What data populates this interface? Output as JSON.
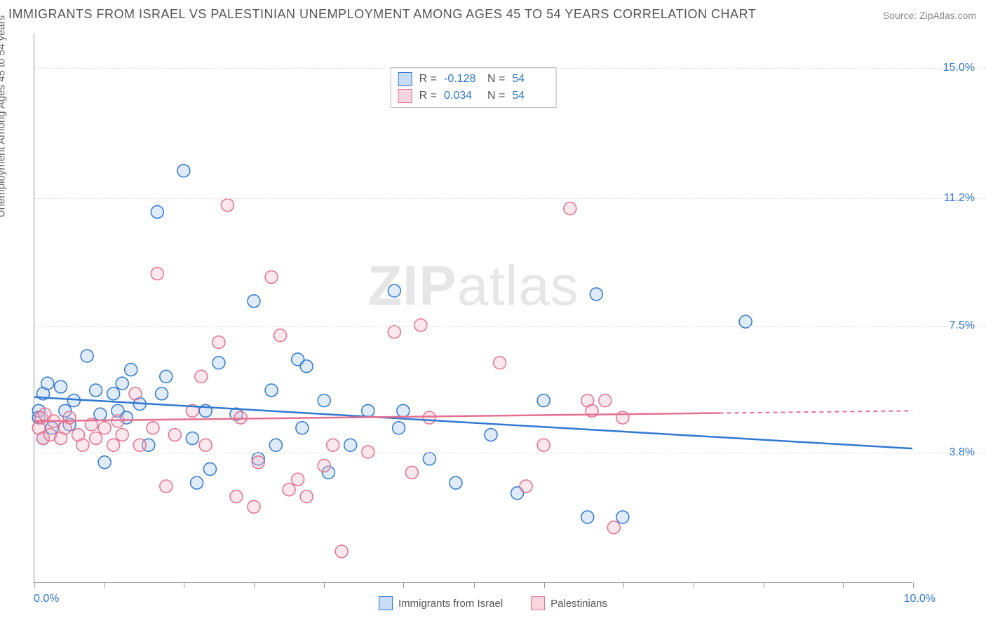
{
  "title": "IMMIGRANTS FROM ISRAEL VS PALESTINIAN UNEMPLOYMENT AMONG AGES 45 TO 54 YEARS CORRELATION CHART",
  "source_label": "Source: ",
  "source_link": "ZipAtlas.com",
  "y_axis_label": "Unemployment Among Ages 45 to 54 years",
  "watermark_bold": "ZIP",
  "watermark_rest": "atlas",
  "chart": {
    "type": "scatter",
    "x_min": 0.0,
    "x_max": 10.0,
    "y_min": 0.0,
    "y_max": 16.0,
    "x_ticks_pct": [
      0,
      8,
      17,
      25,
      33,
      42,
      50,
      58,
      67,
      75,
      83,
      92,
      100
    ],
    "y_gridlines": [
      {
        "value": 3.8,
        "label": "3.8%"
      },
      {
        "value": 7.5,
        "label": "7.5%"
      },
      {
        "value": 11.2,
        "label": "11.2%"
      },
      {
        "value": 15.0,
        "label": "15.0%"
      }
    ],
    "x_left_label": "0.0%",
    "x_right_label": "10.0%",
    "marker_radius": 9,
    "marker_stroke_width": 1.5,
    "marker_fill_opacity": 0.35,
    "background_color": "#ffffff",
    "grid_color": "#dddddd",
    "series": [
      {
        "name": "Immigrants from Israel",
        "color_stroke": "#2f78d1",
        "color_fill": "#a3c6ef",
        "r_value": "-0.128",
        "n_value": "54",
        "regression": {
          "x1": 0.0,
          "y1": 5.4,
          "x2": 10.0,
          "y2": 3.9,
          "dash_after_pct": 100
        },
        "points": [
          [
            0.05,
            5.0
          ],
          [
            0.05,
            4.8
          ],
          [
            0.1,
            5.5
          ],
          [
            0.1,
            4.2
          ],
          [
            0.15,
            5.8
          ],
          [
            0.2,
            4.5
          ],
          [
            0.3,
            5.7
          ],
          [
            0.35,
            5.0
          ],
          [
            0.4,
            4.6
          ],
          [
            0.45,
            5.3
          ],
          [
            0.6,
            6.6
          ],
          [
            0.7,
            5.6
          ],
          [
            0.75,
            4.9
          ],
          [
            0.8,
            3.5
          ],
          [
            0.9,
            5.5
          ],
          [
            0.95,
            5.0
          ],
          [
            1.0,
            5.8
          ],
          [
            1.05,
            4.8
          ],
          [
            1.1,
            6.2
          ],
          [
            1.2,
            5.2
          ],
          [
            1.3,
            4.0
          ],
          [
            1.4,
            10.8
          ],
          [
            1.45,
            5.5
          ],
          [
            1.5,
            6.0
          ],
          [
            1.7,
            12.0
          ],
          [
            1.8,
            4.2
          ],
          [
            1.85,
            2.9
          ],
          [
            1.95,
            5.0
          ],
          [
            2.0,
            3.3
          ],
          [
            2.1,
            6.4
          ],
          [
            2.3,
            4.9
          ],
          [
            2.5,
            8.2
          ],
          [
            2.55,
            3.6
          ],
          [
            2.7,
            5.6
          ],
          [
            2.75,
            4.0
          ],
          [
            3.0,
            6.5
          ],
          [
            3.05,
            4.5
          ],
          [
            3.1,
            6.3
          ],
          [
            3.3,
            5.3
          ],
          [
            3.35,
            3.2
          ],
          [
            3.6,
            4.0
          ],
          [
            3.8,
            5.0
          ],
          [
            4.1,
            8.5
          ],
          [
            4.15,
            4.5
          ],
          [
            4.2,
            5.0
          ],
          [
            4.5,
            3.6
          ],
          [
            4.8,
            2.9
          ],
          [
            5.2,
            4.3
          ],
          [
            5.5,
            2.6
          ],
          [
            5.8,
            5.3
          ],
          [
            6.3,
            1.9
          ],
          [
            6.4,
            8.4
          ],
          [
            6.7,
            1.9
          ],
          [
            8.1,
            7.6
          ]
        ]
      },
      {
        "name": "Palestinians",
        "color_stroke": "#e66f8e",
        "color_fill": "#f6b9c8",
        "r_value": "0.034",
        "n_value": "54",
        "regression": {
          "x1": 0.0,
          "y1": 4.7,
          "x2": 10.0,
          "y2": 5.0,
          "dash_after_pct": 78
        },
        "points": [
          [
            0.05,
            4.5
          ],
          [
            0.08,
            4.8
          ],
          [
            0.1,
            4.2
          ],
          [
            0.12,
            4.9
          ],
          [
            0.18,
            4.3
          ],
          [
            0.22,
            4.7
          ],
          [
            0.3,
            4.2
          ],
          [
            0.35,
            4.5
          ],
          [
            0.4,
            4.8
          ],
          [
            0.5,
            4.3
          ],
          [
            0.55,
            4.0
          ],
          [
            0.65,
            4.6
          ],
          [
            0.7,
            4.2
          ],
          [
            0.8,
            4.5
          ],
          [
            0.9,
            4.0
          ],
          [
            0.95,
            4.7
          ],
          [
            1.0,
            4.3
          ],
          [
            1.15,
            5.5
          ],
          [
            1.2,
            4.0
          ],
          [
            1.35,
            4.5
          ],
          [
            1.4,
            9.0
          ],
          [
            1.5,
            2.8
          ],
          [
            1.6,
            4.3
          ],
          [
            1.8,
            5.0
          ],
          [
            1.9,
            6.0
          ],
          [
            1.95,
            4.0
          ],
          [
            2.1,
            7.0
          ],
          [
            2.2,
            11.0
          ],
          [
            2.3,
            2.5
          ],
          [
            2.35,
            4.8
          ],
          [
            2.5,
            2.2
          ],
          [
            2.55,
            3.5
          ],
          [
            2.7,
            8.9
          ],
          [
            2.8,
            7.2
          ],
          [
            2.9,
            2.7
          ],
          [
            3.0,
            3.0
          ],
          [
            3.1,
            2.5
          ],
          [
            3.3,
            3.4
          ],
          [
            3.4,
            4.0
          ],
          [
            3.5,
            0.9
          ],
          [
            3.8,
            3.8
          ],
          [
            4.1,
            7.3
          ],
          [
            4.3,
            3.2
          ],
          [
            4.4,
            7.5
          ],
          [
            4.5,
            4.8
          ],
          [
            5.3,
            6.4
          ],
          [
            5.6,
            2.8
          ],
          [
            5.8,
            4.0
          ],
          [
            6.1,
            10.9
          ],
          [
            6.3,
            5.3
          ],
          [
            6.35,
            5.0
          ],
          [
            6.5,
            5.3
          ],
          [
            6.6,
            1.6
          ],
          [
            6.7,
            4.8
          ]
        ]
      }
    ]
  },
  "bottom_legend": [
    {
      "label": "Immigrants from Israel",
      "stroke": "#2f78d1",
      "fill": "#a3c6ef"
    },
    {
      "label": "Palestinians",
      "stroke": "#e66f8e",
      "fill": "#f6b9c8"
    }
  ],
  "stats_r_label": "R =",
  "stats_n_label": "N ="
}
